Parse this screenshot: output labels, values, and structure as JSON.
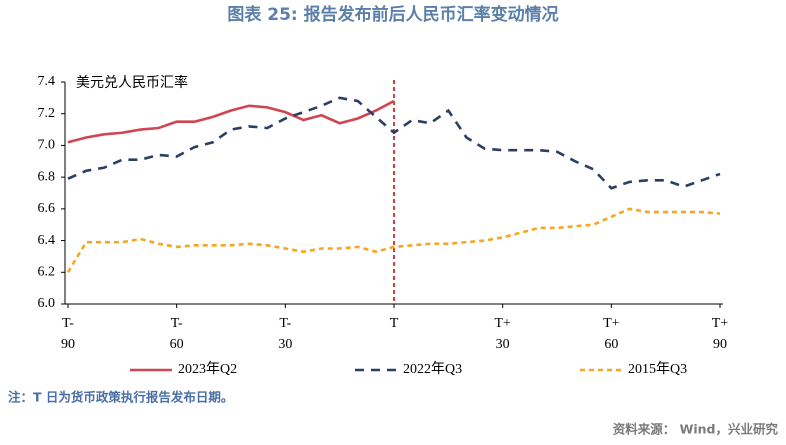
{
  "chart_data": {
    "type": "line",
    "title": "图表 25: 报告发布前后人民币汇率变动情况",
    "y_label": "美元兑人民币汇率",
    "note": "注：T 日为货币政策执行报告发布日期。",
    "source": "资料来源：  Wind，兴业研究",
    "x": [
      -90,
      -85,
      -80,
      -75,
      -70,
      -65,
      -60,
      -55,
      -50,
      -45,
      -40,
      -35,
      -30,
      -25,
      -20,
      -15,
      -10,
      -5,
      0,
      5,
      10,
      15,
      20,
      25,
      30,
      35,
      40,
      45,
      50,
      55,
      60,
      65,
      70,
      75,
      80,
      85,
      90
    ],
    "series": [
      {
        "name": "2023年Q2",
        "color": "#d0454f",
        "dash": "solid",
        "values": [
          7.02,
          7.05,
          7.07,
          7.08,
          7.1,
          7.11,
          7.15,
          7.15,
          7.18,
          7.22,
          7.25,
          7.24,
          7.21,
          7.16,
          7.19,
          7.14,
          7.17,
          7.22,
          7.28,
          null,
          null,
          null,
          null,
          null,
          null,
          null,
          null,
          null,
          null,
          null,
          null,
          null,
          null,
          null,
          null,
          null,
          null
        ]
      },
      {
        "name": "2022年Q3",
        "color": "#2b3f63",
        "dash": "dashed",
        "values": [
          6.79,
          6.84,
          6.86,
          6.91,
          6.91,
          6.94,
          6.93,
          6.99,
          7.02,
          7.1,
          7.12,
          7.11,
          7.17,
          7.21,
          7.25,
          7.3,
          7.28,
          7.18,
          7.08,
          7.16,
          7.14,
          7.22,
          7.05,
          6.98,
          6.97,
          6.97,
          6.97,
          6.96,
          6.9,
          6.85,
          6.73,
          6.77,
          6.78,
          6.78,
          6.74,
          6.78,
          6.82
        ]
      },
      {
        "name": "2015年Q3",
        "color": "#f5a623",
        "dash": "dashed",
        "values": [
          6.2,
          6.39,
          6.39,
          6.39,
          6.41,
          6.38,
          6.36,
          6.37,
          6.37,
          6.37,
          6.38,
          6.37,
          6.35,
          6.33,
          6.35,
          6.35,
          6.36,
          6.33,
          6.36,
          6.37,
          6.38,
          6.38,
          6.39,
          6.4,
          6.42,
          6.45,
          6.48,
          6.48,
          6.49,
          6.5,
          6.55,
          6.6,
          6.58,
          6.58,
          6.58,
          6.58,
          6.57
        ]
      }
    ],
    "xlim": [
      -90,
      90
    ],
    "xticks": [
      {
        "value": -90,
        "label": "T-\n90"
      },
      {
        "value": -60,
        "label": "T-\n60"
      },
      {
        "value": -30,
        "label": "T-\n30"
      },
      {
        "value": 0,
        "label": "T"
      },
      {
        "value": 30,
        "label": "T+\n30"
      },
      {
        "value": 60,
        "label": "T+\n60"
      },
      {
        "value": 90,
        "label": "T+\n90"
      }
    ],
    "ylim": [
      6.0,
      7.4
    ],
    "yticks": [
      {
        "value": 6.0,
        "label": "6.0"
      },
      {
        "value": 6.2,
        "label": "6.2"
      },
      {
        "value": 6.4,
        "label": "6.4"
      },
      {
        "value": 6.6,
        "label": "6.6"
      },
      {
        "value": 6.8,
        "label": "6.8"
      },
      {
        "value": 7.0,
        "label": "7.0"
      },
      {
        "value": 7.2,
        "label": "7.2"
      },
      {
        "value": 7.4,
        "label": "7.4"
      }
    ],
    "marker_line": {
      "x": 0,
      "color": "#c00000"
    }
  }
}
